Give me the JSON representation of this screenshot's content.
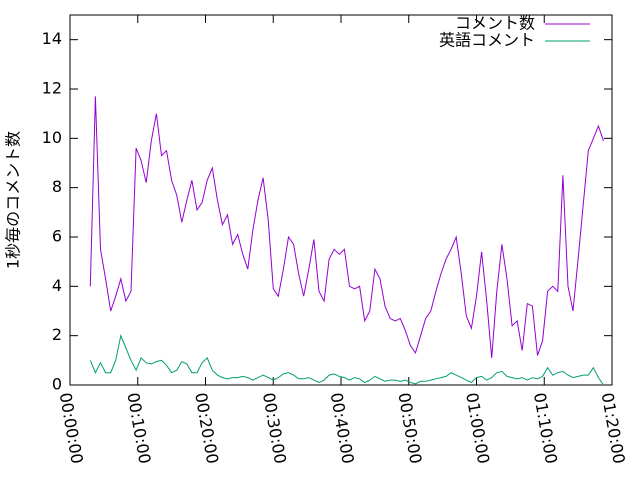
{
  "chart_data": {
    "type": "line",
    "ylabel": "1秒毎のコメント数",
    "x": [
      3,
      3.75,
      4.5,
      5.25,
      6,
      6.75,
      7.5,
      8.25,
      9,
      9.75,
      10.5,
      11.25,
      12,
      12.75,
      13.5,
      14.25,
      15,
      15.75,
      16.5,
      17.25,
      18,
      18.75,
      19.5,
      20.25,
      21,
      21.75,
      22.5,
      23.25,
      24,
      24.75,
      25.5,
      26.25,
      27,
      27.75,
      28.5,
      29.25,
      30,
      30.75,
      31.5,
      32.25,
      33,
      33.75,
      34.5,
      35.25,
      36,
      36.75,
      37.5,
      38.25,
      39,
      39.75,
      40.5,
      41.25,
      42,
      42.75,
      43.5,
      44.25,
      45,
      45.75,
      46.5,
      47.25,
      48,
      48.75,
      49.5,
      50.25,
      51,
      51.75,
      52.5,
      53.25,
      54,
      54.75,
      55.5,
      56.25,
      57,
      57.75,
      58.5,
      59.25,
      60,
      60.75,
      61.5,
      62.25,
      63,
      63.75,
      64.5,
      65.25,
      66,
      66.75,
      67.5,
      68.25,
      69,
      69.75,
      70.5,
      71.25,
      72,
      72.75,
      73.5,
      74.25,
      75,
      75.75,
      76.5,
      77.25,
      78,
      78.75
    ],
    "series": [
      {
        "name": "コメント数",
        "color": "#9400d3",
        "values": [
          4.0,
          11.7,
          5.5,
          4.3,
          3.0,
          3.6,
          4.3,
          3.4,
          3.8,
          9.6,
          9.1,
          8.2,
          9.9,
          11.0,
          9.3,
          9.5,
          8.3,
          7.7,
          6.6,
          7.5,
          8.3,
          7.1,
          7.4,
          8.3,
          8.8,
          7.5,
          6.5,
          6.9,
          5.7,
          6.1,
          5.3,
          4.7,
          6.3,
          7.5,
          8.4,
          6.7,
          3.9,
          3.6,
          4.7,
          6.0,
          5.7,
          4.5,
          3.6,
          4.7,
          5.9,
          3.8,
          3.4,
          5.1,
          5.5,
          5.3,
          5.5,
          4.0,
          3.9,
          4.0,
          2.6,
          3.0,
          4.7,
          4.3,
          3.2,
          2.7,
          2.6,
          2.7,
          2.2,
          1.6,
          1.3,
          2.0,
          2.7,
          3.0,
          3.8,
          4.5,
          5.1,
          5.5,
          6.0,
          4.5,
          2.8,
          2.3,
          3.6,
          5.4,
          3.4,
          1.1,
          3.8,
          5.7,
          4.3,
          2.4,
          2.6,
          1.4,
          3.3,
          3.2,
          1.2,
          1.8,
          3.8,
          4.0,
          3.8,
          8.5,
          4.0,
          3.0,
          5.1,
          7.3,
          9.5,
          10.0,
          10.5,
          9.9
        ]
      },
      {
        "name": "英語コメント",
        "color": "#009e73",
        "values": [
          1.0,
          0.5,
          0.9,
          0.5,
          0.5,
          1.0,
          2.0,
          1.5,
          1.0,
          0.6,
          1.1,
          0.9,
          0.85,
          0.95,
          1.0,
          0.8,
          0.5,
          0.6,
          0.95,
          0.85,
          0.5,
          0.5,
          0.9,
          1.1,
          0.6,
          0.4,
          0.3,
          0.25,
          0.3,
          0.3,
          0.35,
          0.3,
          0.2,
          0.3,
          0.4,
          0.3,
          0.2,
          0.3,
          0.45,
          0.5,
          0.4,
          0.25,
          0.25,
          0.3,
          0.2,
          0.1,
          0.2,
          0.4,
          0.45,
          0.35,
          0.3,
          0.2,
          0.3,
          0.25,
          0.1,
          0.2,
          0.35,
          0.25,
          0.15,
          0.2,
          0.2,
          0.15,
          0.2,
          0.1,
          0.05,
          0.15,
          0.15,
          0.2,
          0.25,
          0.3,
          0.35,
          0.5,
          0.4,
          0.3,
          0.2,
          0.1,
          0.3,
          0.35,
          0.2,
          0.3,
          0.5,
          0.55,
          0.35,
          0.3,
          0.25,
          0.3,
          0.2,
          0.3,
          0.25,
          0.35,
          0.7,
          0.4,
          0.5,
          0.55,
          0.4,
          0.3,
          0.35,
          0.4,
          0.4,
          0.7,
          0.3,
          0.0
        ]
      }
    ],
    "xlim": [
      0,
      80
    ],
    "xticks": [
      {
        "value": 0,
        "label": "00:00:00"
      },
      {
        "value": 10,
        "label": "00:10:00"
      },
      {
        "value": 20,
        "label": "00:20:00"
      },
      {
        "value": 30,
        "label": "00:30:00"
      },
      {
        "value": 40,
        "label": "00:40:00"
      },
      {
        "value": 50,
        "label": "00:50:00"
      },
      {
        "value": 60,
        "label": "01:00:00"
      },
      {
        "value": 70,
        "label": "01:10:00"
      },
      {
        "value": 80,
        "label": "01:20:00"
      }
    ],
    "ylim": [
      0,
      15
    ],
    "yticks": [
      0,
      2,
      4,
      6,
      8,
      10,
      12,
      14
    ],
    "grid": false,
    "legend": "top-right"
  }
}
